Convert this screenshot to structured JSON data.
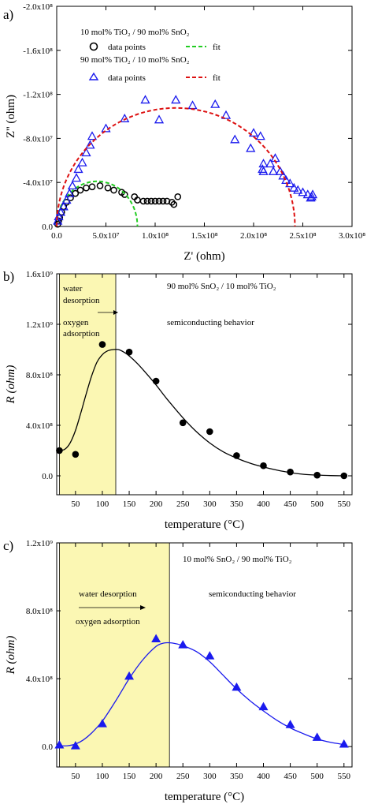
{
  "chart_data": [
    {
      "type": "scatter",
      "panel_label": "a)",
      "xlabel": "Z' (ohm)",
      "ylabel": "Z'' (ohm)",
      "xlim": [
        0,
        300000000
      ],
      "ylim": [
        -200000000,
        0
      ],
      "x_ticks": [
        {
          "v": 0,
          "label": "0.0"
        },
        {
          "v": 50000000,
          "label": "5.0x10⁷"
        },
        {
          "v": 100000000,
          "label": "1.0x10⁸"
        },
        {
          "v": 150000000,
          "label": "1.5x10⁸"
        },
        {
          "v": 200000000,
          "label": "2.0x10⁸"
        },
        {
          "v": 250000000,
          "label": "2.5x10⁸"
        },
        {
          "v": 300000000,
          "label": "3.0x10⁸"
        }
      ],
      "y_ticks": [
        {
          "v": 0,
          "label": "0.0"
        },
        {
          "v": -40000000,
          "label": "-4.0x10⁷"
        },
        {
          "v": -80000000,
          "label": "-8.0x10⁷"
        },
        {
          "v": -120000000,
          "label": "-1.2x10⁸"
        },
        {
          "v": -160000000,
          "label": "-1.6x10⁸"
        },
        {
          "v": -200000000,
          "label": "-2.0x10⁸"
        }
      ],
      "legend": {
        "group1_title": "10 mol% TiO₂ / 90 mol% SnO₂",
        "group2_title": "90 mol% TiO₂ / 10 mol% SnO₂",
        "points_label": "data points",
        "fit_label": "fit"
      },
      "series": [
        {
          "name": "10 mol% TiO₂ / 90 mol% SnO₂ data points",
          "color": "#000000",
          "marker": "circle",
          "points": [
            [
              1000000,
              -2000000
            ],
            [
              2000000,
              -5000000
            ],
            [
              3000000,
              -8000000
            ],
            [
              5000000,
              -13000000
            ],
            [
              7000000,
              -18000000
            ],
            [
              10000000,
              -22000000
            ],
            [
              14000000,
              -26000000
            ],
            [
              19000000,
              -30000000
            ],
            [
              24000000,
              -33000000
            ],
            [
              30000000,
              -35000000
            ],
            [
              36000000,
              -36000000
            ],
            [
              44000000,
              -37000000
            ],
            [
              52000000,
              -35000000
            ],
            [
              58000000,
              -33000000
            ],
            [
              66000000,
              -31000000
            ],
            [
              69000000,
              -29000000
            ],
            [
              79000000,
              -27000000
            ],
            [
              82000000,
              -24000000
            ],
            [
              88000000,
              -23000000
            ],
            [
              92000000,
              -23000000
            ],
            [
              96000000,
              -23000000
            ],
            [
              100000000,
              -23000000
            ],
            [
              104000000,
              -23000000
            ],
            [
              108000000,
              -23000000
            ],
            [
              112000000,
              -23000000
            ],
            [
              117000000,
              -22000000
            ],
            [
              119000000,
              -20000000
            ],
            [
              123000000,
              -27000000
            ]
          ]
        },
        {
          "name": "10 mol% TiO₂ / 90 mol% SnO₂ fit",
          "color": "#22cc22",
          "style": "dashed",
          "center": 41000000,
          "radius": 41000000,
          "theta_range_deg": [
            0,
            180
          ]
        },
        {
          "name": "90 mol% TiO₂ / 10 mol% SnO₂ data points",
          "color": "#1a1aee",
          "marker": "triangle",
          "points": [
            [
              1000000,
              -5000000
            ],
            [
              2000000,
              -9000000
            ],
            [
              4000000,
              -13000000
            ],
            [
              7000000,
              -18000000
            ],
            [
              10000000,
              -24000000
            ],
            [
              13000000,
              -30000000
            ],
            [
              16000000,
              -37000000
            ],
            [
              20000000,
              -44000000
            ],
            [
              22000000,
              -52000000
            ],
            [
              26000000,
              -58000000
            ],
            [
              30000000,
              -67000000
            ],
            [
              34000000,
              -74000000
            ],
            [
              36000000,
              -82000000
            ],
            [
              50000000,
              -89000000
            ],
            [
              69000000,
              -98000000
            ],
            [
              90000000,
              -115000000
            ],
            [
              104000000,
              -97000000
            ],
            [
              121000000,
              -115000000
            ],
            [
              138000000,
              -110000000
            ],
            [
              161000000,
              -111000000
            ],
            [
              172000000,
              -101000000
            ],
            [
              181000000,
              -79000000
            ],
            [
              197000000,
              -71000000
            ],
            [
              200000000,
              -85000000
            ],
            [
              207000000,
              -82000000
            ],
            [
              210000000,
              -57000000
            ],
            [
              209000000,
              -52000000
            ],
            [
              210000000,
              -50000000
            ],
            [
              217000000,
              -57000000
            ],
            [
              220000000,
              -50000000
            ],
            [
              222000000,
              -62000000
            ],
            [
              227000000,
              -50000000
            ],
            [
              230000000,
              -46000000
            ],
            [
              233000000,
              -42000000
            ],
            [
              237000000,
              -39000000
            ],
            [
              241000000,
              -35000000
            ],
            [
              245000000,
              -33000000
            ],
            [
              250000000,
              -31000000
            ],
            [
              255000000,
              -29000000
            ],
            [
              259000000,
              -27000000
            ],
            [
              260000000,
              -29000000
            ],
            [
              258000000,
              -26000000
            ]
          ]
        },
        {
          "name": "90 mol% TiO₂ / 10 mol% SnO₂ fit",
          "color": "#dd1111",
          "style": "dashed",
          "center": 121000000,
          "radius": 121000000,
          "y_scale": 0.89,
          "theta_range_deg": [
            0,
            180
          ]
        }
      ]
    },
    {
      "type": "line",
      "panel_label": "b)",
      "xlabel": "temperature (°C)",
      "ylabel": "R (ohm)",
      "xlim": [
        15,
        565
      ],
      "ylim": [
        -150000000,
        1600000000
      ],
      "x_ticks": [
        {
          "v": 50,
          "label": "50"
        },
        {
          "v": 100,
          "label": "100"
        },
        {
          "v": 150,
          "label": "150"
        },
        {
          "v": 200,
          "label": "200"
        },
        {
          "v": 250,
          "label": "250"
        },
        {
          "v": 300,
          "label": "300"
        },
        {
          "v": 350,
          "label": "350"
        },
        {
          "v": 400,
          "label": "400"
        },
        {
          "v": 450,
          "label": "450"
        },
        {
          "v": 500,
          "label": "500"
        },
        {
          "v": 550,
          "label": "550"
        }
      ],
      "y_ticks": [
        {
          "v": 0,
          "label": "0.0"
        },
        {
          "v": 400000000,
          "label": "4.0x10⁸"
        },
        {
          "v": 800000000,
          "label": "8.0x10⁸"
        },
        {
          "v": 1200000000,
          "label": "1.2x10⁹"
        },
        {
          "v": 1600000000,
          "label": "1.6x10⁹"
        }
      ],
      "title": "90 mol% SnO₂ / 10 mol% TiO₂",
      "annotations": {
        "region_line1": "water",
        "region_line2": "desorption",
        "region_line3": "oxygen",
        "region_line4": "adsorption",
        "right_text": "semiconducting behavior"
      },
      "highlight_region": {
        "x0": 20,
        "x1": 125,
        "color": "#fbf7b3"
      },
      "series": [
        {
          "name": "data",
          "color": "#000000",
          "marker": "circle",
          "x": [
            20,
            50,
            100,
            150,
            200,
            250,
            300,
            350,
            400,
            450,
            500,
            550
          ],
          "y": [
            200000000,
            170000000,
            1040000000,
            980000000,
            750000000,
            420000000,
            350000000,
            160000000,
            80000000,
            30000000,
            5000000,
            0
          ]
        },
        {
          "name": "fit",
          "color": "#000000",
          "style": "solid",
          "x": [
            20,
            30,
            40,
            50,
            60,
            70,
            80,
            90,
            100,
            110,
            120,
            130,
            140,
            150,
            165,
            180,
            200,
            220,
            250,
            275,
            300,
            325,
            350,
            375,
            400,
            425,
            450,
            475,
            500,
            525,
            550
          ],
          "y": [
            200000000,
            210000000,
            260000000,
            360000000,
            500000000,
            650000000,
            790000000,
            900000000,
            960000000,
            990000000,
            1000000000,
            1000000000,
            980000000,
            950000000,
            890000000,
            820000000,
            720000000,
            610000000,
            460000000,
            350000000,
            260000000,
            190000000,
            140000000,
            100000000,
            70000000,
            45000000,
            25000000,
            12000000,
            6000000,
            2000000,
            0
          ]
        }
      ]
    },
    {
      "type": "line",
      "panel_label": "c)",
      "xlabel": "temperature (°C)",
      "ylabel": "R (ohm)",
      "xlim": [
        15,
        565
      ],
      "ylim": [
        -120000000,
        1200000000
      ],
      "x_ticks": [
        {
          "v": 50,
          "label": "50"
        },
        {
          "v": 100,
          "label": "100"
        },
        {
          "v": 150,
          "label": "150"
        },
        {
          "v": 200,
          "label": "200"
        },
        {
          "v": 250,
          "label": "250"
        },
        {
          "v": 300,
          "label": "300"
        },
        {
          "v": 350,
          "label": "350"
        },
        {
          "v": 400,
          "label": "400"
        },
        {
          "v": 450,
          "label": "450"
        },
        {
          "v": 500,
          "label": "500"
        },
        {
          "v": 550,
          "label": "550"
        }
      ],
      "y_ticks": [
        {
          "v": 0,
          "label": "0.0"
        },
        {
          "v": 400000000,
          "label": "4.0x10⁸"
        },
        {
          "v": 800000000,
          "label": "8.0x10⁸"
        },
        {
          "v": 1200000000,
          "label": "1.2x10⁹"
        }
      ],
      "title": "10 mol% SnO₂ / 90 mol% TiO₂",
      "annotations": {
        "region_line1": "water desorption",
        "region_line2": "oxygen adsorption",
        "right_text": "semiconducting behavior"
      },
      "highlight_region": {
        "x0": 20,
        "x1": 225,
        "color": "#fbf7b3"
      },
      "series": [
        {
          "name": "data",
          "color": "#1a1aee",
          "marker": "triangle",
          "x": [
            20,
            50,
            100,
            150,
            200,
            250,
            300,
            350,
            400,
            450,
            500,
            550
          ],
          "y": [
            10000000,
            5000000,
            135000000,
            415000000,
            635000000,
            600000000,
            535000000,
            350000000,
            235000000,
            130000000,
            55000000,
            15000000
          ]
        },
        {
          "name": "fit",
          "color": "#1a1aee",
          "style": "solid",
          "x": [
            20,
            35,
            50,
            65,
            80,
            100,
            125,
            150,
            175,
            200,
            215,
            230,
            250,
            275,
            300,
            325,
            350,
            375,
            400,
            425,
            450,
            475,
            500,
            525,
            550
          ],
          "y": [
            5000000,
            5000000,
            15000000,
            40000000,
            80000000,
            150000000,
            270000000,
            400000000,
            510000000,
            590000000,
            610000000,
            610000000,
            595000000,
            560000000,
            500000000,
            420000000,
            340000000,
            270000000,
            210000000,
            155000000,
            110000000,
            75000000,
            45000000,
            25000000,
            12000000
          ]
        }
      ]
    }
  ]
}
